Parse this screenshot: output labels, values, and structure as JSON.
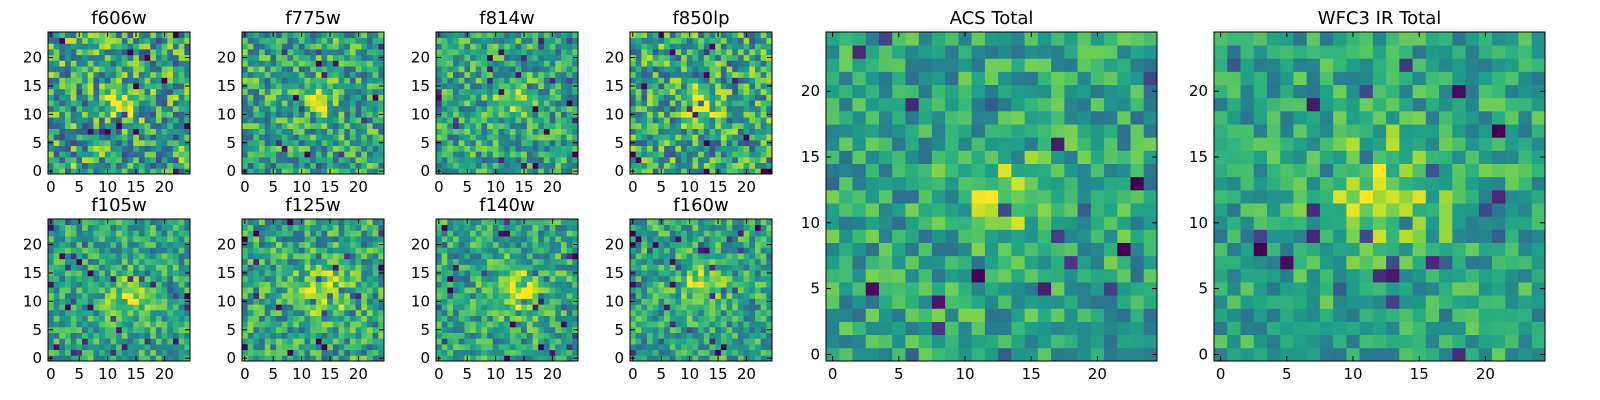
{
  "figure": {
    "background": "#ffffff",
    "colormap": "viridis"
  },
  "chart_data": [
    {
      "type": "heatmap",
      "title": "f606w",
      "grid_size": 25,
      "xlim": [
        0,
        24
      ],
      "ylim": [
        0,
        24
      ],
      "xticks": [
        "0",
        "5",
        "10",
        "15",
        "20"
      ],
      "yticks": [
        "0",
        "5",
        "10",
        "15",
        "20"
      ],
      "center": [
        12.5,
        12
      ],
      "peak_width": 2.0,
      "brightness": 0.72,
      "noise": 0.34,
      "seed": 11
    },
    {
      "type": "heatmap",
      "title": "f775w",
      "grid_size": 25,
      "xlim": [
        0,
        24
      ],
      "ylim": [
        0,
        24
      ],
      "xticks": [
        "0",
        "5",
        "10",
        "15",
        "20"
      ],
      "yticks": [
        "0",
        "5",
        "10",
        "15",
        "20"
      ],
      "center": [
        13,
        13
      ],
      "peak_width": 2.0,
      "brightness": 0.55,
      "noise": 0.28,
      "seed": 23
    },
    {
      "type": "heatmap",
      "title": "f814w",
      "grid_size": 25,
      "xlim": [
        0,
        24
      ],
      "ylim": [
        0,
        24
      ],
      "xticks": [
        "0",
        "5",
        "10",
        "15",
        "20"
      ],
      "yticks": [
        "0",
        "5",
        "10",
        "15",
        "20"
      ],
      "center": [
        13,
        13
      ],
      "peak_width": 2.1,
      "brightness": 0.48,
      "noise": 0.26,
      "seed": 37
    },
    {
      "type": "heatmap",
      "title": "f850lp",
      "grid_size": 25,
      "xlim": [
        0,
        24
      ],
      "ylim": [
        0,
        24
      ],
      "xticks": [
        "0",
        "5",
        "10",
        "15",
        "20"
      ],
      "yticks": [
        "0",
        "5",
        "10",
        "15",
        "20"
      ],
      "center": [
        12,
        12
      ],
      "peak_width": 2.0,
      "brightness": 0.62,
      "noise": 0.32,
      "seed": 41
    },
    {
      "type": "heatmap",
      "title": "f105w",
      "grid_size": 25,
      "xlim": [
        0,
        24
      ],
      "ylim": [
        0,
        24
      ],
      "xticks": [
        "0",
        "5",
        "10",
        "15",
        "20"
      ],
      "yticks": [
        "0",
        "5",
        "10",
        "15",
        "20"
      ],
      "center": [
        14,
        11
      ],
      "peak_width": 3.0,
      "brightness": 0.45,
      "noise": 0.22,
      "seed": 53
    },
    {
      "type": "heatmap",
      "title": "f125w",
      "grid_size": 25,
      "xlim": [
        0,
        24
      ],
      "ylim": [
        0,
        24
      ],
      "xticks": [
        "0",
        "5",
        "10",
        "15",
        "20"
      ],
      "yticks": [
        "0",
        "5",
        "10",
        "15",
        "20"
      ],
      "center": [
        14,
        12
      ],
      "peak_width": 3.0,
      "brightness": 0.6,
      "noise": 0.26,
      "seed": 67
    },
    {
      "type": "heatmap",
      "title": "f140w",
      "grid_size": 25,
      "xlim": [
        0,
        24
      ],
      "ylim": [
        0,
        24
      ],
      "xticks": [
        "0",
        "5",
        "10",
        "15",
        "20"
      ],
      "yticks": [
        "0",
        "5",
        "10",
        "15",
        "20"
      ],
      "center": [
        13,
        12
      ],
      "peak_width": 3.2,
      "brightness": 0.55,
      "noise": 0.24,
      "seed": 71
    },
    {
      "type": "heatmap",
      "title": "f160w",
      "grid_size": 25,
      "xlim": [
        0,
        24
      ],
      "ylim": [
        0,
        24
      ],
      "xticks": [
        "0",
        "5",
        "10",
        "15",
        "20"
      ],
      "yticks": [
        "0",
        "5",
        "10",
        "15",
        "20"
      ],
      "center": [
        12,
        13
      ],
      "peak_width": 2.6,
      "brightness": 0.5,
      "noise": 0.24,
      "seed": 83
    },
    {
      "type": "heatmap",
      "title": "ACS Total",
      "grid_size": 25,
      "xlim": [
        0,
        24
      ],
      "ylim": [
        0,
        24
      ],
      "xticks": [
        "0",
        "5",
        "10",
        "15",
        "20"
      ],
      "yticks": [
        "0",
        "5",
        "10",
        "15",
        "20"
      ],
      "center": [
        13,
        12
      ],
      "peak_width": 2.3,
      "brightness": 0.5,
      "noise": 0.22,
      "seed": 97
    },
    {
      "type": "heatmap",
      "title": "WFC3 IR Total",
      "grid_size": 25,
      "xlim": [
        0,
        24
      ],
      "ylim": [
        0,
        24
      ],
      "xticks": [
        "0",
        "5",
        "10",
        "15",
        "20"
      ],
      "yticks": [
        "0",
        "5",
        "10",
        "15",
        "20"
      ],
      "center": [
        12,
        12
      ],
      "peak_width": 3.4,
      "brightness": 0.45,
      "noise": 0.2,
      "seed": 101
    }
  ]
}
